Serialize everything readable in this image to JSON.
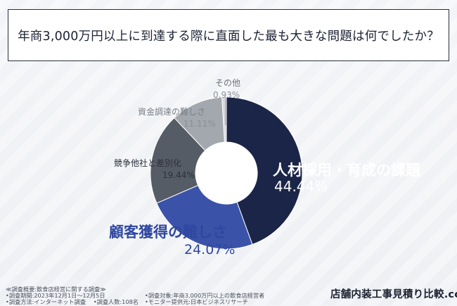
{
  "question": "年商3,000万円以上に到達する際に直面した最も大きな問題は何でしたか？",
  "chart_data": {
    "type": "pie",
    "donut": true,
    "categories": [
      "人材採用・育成の課題",
      "顧客獲得の難しさ",
      "競争他社と差別化",
      "資金調達の難しさ",
      "その他"
    ],
    "values": [
      44.44,
      24.07,
      19.44,
      11.11,
      0.93
    ],
    "value_labels": [
      "44.44%",
      "24.07%",
      "19.44%",
      "11.11%",
      "0.93%"
    ],
    "colors": [
      "#1b2547",
      "#3a53a8",
      "#565c66",
      "#a3a7ae",
      "#d6d8dc"
    ],
    "start_angle_deg": 0,
    "direction": "clockwise"
  },
  "survey": {
    "title": "≪調査概要:飲食店経営に関する調査≫",
    "period": "•調査期間:2023年12月1日〜12月5日",
    "method": "•調査方法:インターネット調査　 •調査人数:108名",
    "target": "•調査対象:年商3,000万円以上の飲食店経営者",
    "provider": "•モニター提供元:日本ビジネスリサーチ"
  },
  "brand": "店舗内装工事見積り比較.com"
}
